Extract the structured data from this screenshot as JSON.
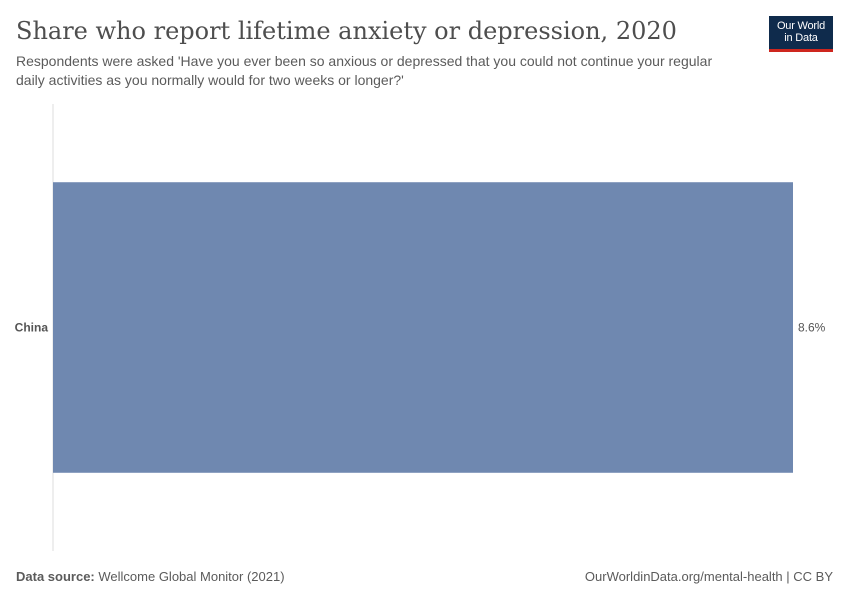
{
  "header": {
    "title": "Share who report lifetime anxiety or depression, 2020",
    "subtitle": "Respondents were asked 'Have you ever been so anxious or depressed that you could not continue your regular daily activities as you normally would for two weeks or longer?'"
  },
  "logo": {
    "line1": "Our World",
    "line2": "in Data"
  },
  "footer": {
    "source_label": "Data source:",
    "source": "Wellcome Global Monitor (2021)",
    "link": "OurWorldinData.org/mental-health | CC BY"
  },
  "colors": {
    "bar": "#6f88b0",
    "axis": "#dcdcdc",
    "logo_bg": "#0f2b4c",
    "logo_accent": "#ce261e"
  },
  "chart_data": {
    "type": "bar",
    "orientation": "horizontal",
    "title": "Share who report lifetime anxiety or depression, 2020",
    "categories": [
      "China"
    ],
    "values": [
      8.6
    ],
    "value_labels": [
      "8.6%"
    ],
    "unit": "%",
    "xlim": [
      0,
      8.6
    ],
    "grid": false,
    "legend": "none"
  }
}
